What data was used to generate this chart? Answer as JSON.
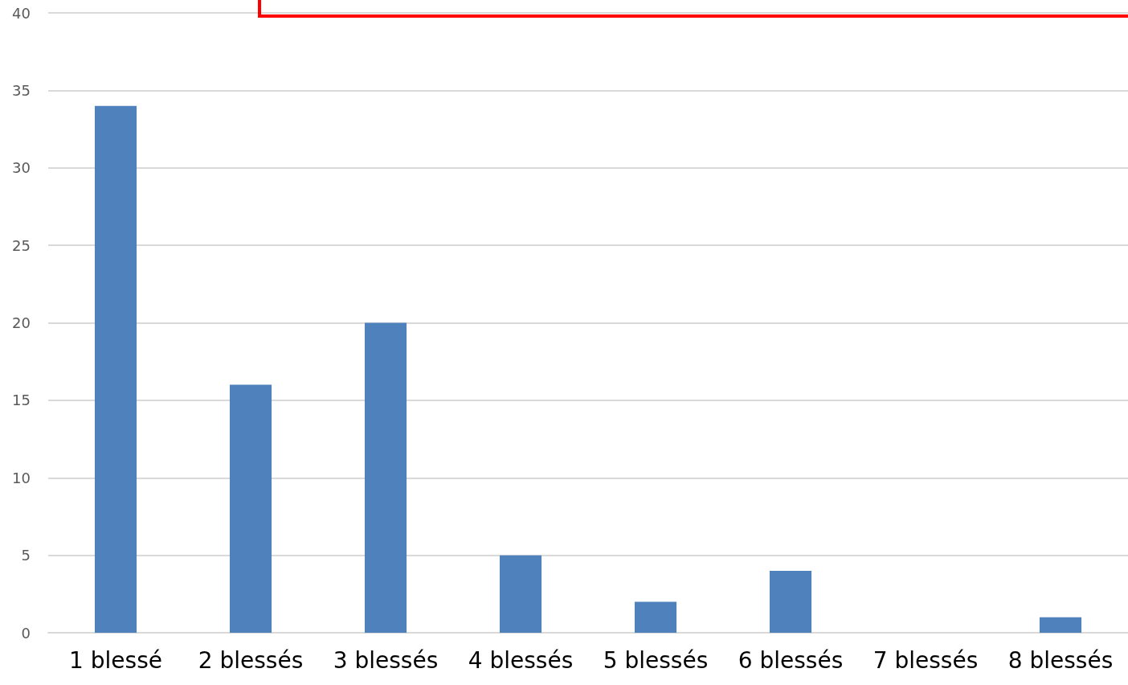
{
  "chart_data": {
    "type": "bar",
    "categories": [
      "1 blessé",
      "2 blessés",
      "3 blessés",
      "4 blessés",
      "5 blessés",
      "6 blessés",
      "7 blessés",
      "8 blessés"
    ],
    "values": [
      34,
      16,
      20,
      5,
      2,
      4,
      0,
      1
    ],
    "color": "#4f81bd",
    "ylim": [
      0,
      40
    ],
    "yticks": [
      0,
      5,
      10,
      15,
      20,
      25,
      30,
      35,
      40
    ],
    "grid": "y"
  }
}
